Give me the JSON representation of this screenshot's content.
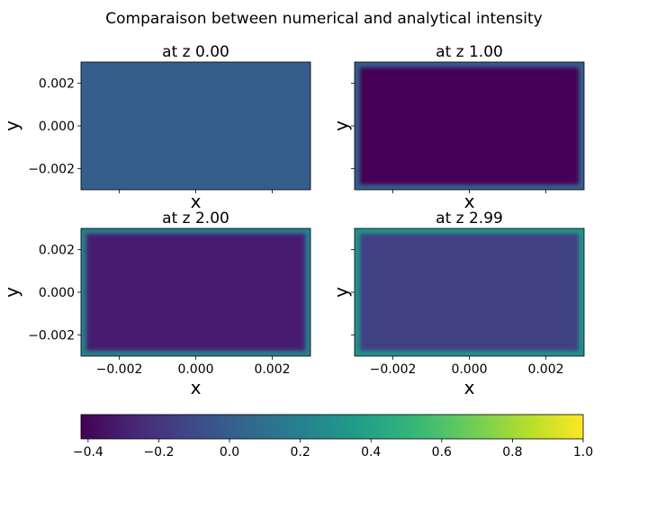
{
  "title": "Comparaison between numerical and analytical intensity",
  "chart_data": [
    {
      "type": "heatmap",
      "title": "at z 0.00",
      "xlabel": "x",
      "ylabel": "y",
      "xlim": [
        -0.003,
        0.003
      ],
      "ylim": [
        -0.003,
        0.003
      ],
      "xticks": [
        -0.002,
        0.0,
        0.002
      ],
      "xtick_labels": [
        "",
        "",
        ""
      ],
      "yticks": [
        -0.002,
        0.0,
        0.002
      ],
      "ytick_labels": [
        "−0.002",
        "0.000",
        "0.002"
      ],
      "interior_value": 0.0,
      "edge_value": 0.0
    },
    {
      "type": "heatmap",
      "title": "at z 1.00",
      "xlabel": "x",
      "ylabel": "y",
      "xlim": [
        -0.003,
        0.003
      ],
      "ylim": [
        -0.003,
        0.003
      ],
      "xticks": [
        -0.002,
        0.0,
        0.002
      ],
      "xtick_labels": [
        "",
        "",
        ""
      ],
      "yticks": [
        -0.002,
        0.0,
        0.002
      ],
      "ytick_labels": [
        "",
        "",
        ""
      ],
      "interior_value": -0.42,
      "edge_value": 0.0
    },
    {
      "type": "heatmap",
      "title": "at z 2.00",
      "xlabel": "x",
      "ylabel": "y",
      "xlim": [
        -0.003,
        0.003
      ],
      "ylim": [
        -0.003,
        0.003
      ],
      "xticks": [
        -0.002,
        0.0,
        0.002
      ],
      "xtick_labels": [
        "−0.002",
        "0.000",
        "0.002"
      ],
      "yticks": [
        -0.002,
        0.0,
        0.002
      ],
      "ytick_labels": [
        "−0.002",
        "0.000",
        "0.002"
      ],
      "interior_value": -0.3,
      "edge_value": 0.2
    },
    {
      "type": "heatmap",
      "title": "at z 2.99",
      "xlabel": "x",
      "ylabel": "y",
      "xlim": [
        -0.003,
        0.003
      ],
      "ylim": [
        -0.003,
        0.003
      ],
      "xticks": [
        -0.002,
        0.0,
        0.002
      ],
      "xtick_labels": [
        "−0.002",
        "0.000",
        "0.002"
      ],
      "yticks": [
        -0.002,
        0.0,
        0.002
      ],
      "ytick_labels": [
        "",
        "",
        ""
      ],
      "interior_value": -0.15,
      "edge_value": 0.3
    }
  ],
  "colorbar": {
    "colormap": "viridis",
    "vmin": -0.42,
    "vmax": 1.0,
    "ticks": [
      -0.4,
      -0.2,
      0.0,
      0.2,
      0.4,
      0.6,
      0.8,
      1.0
    ],
    "tick_labels": [
      "−0.4",
      "−0.2",
      "0.0",
      "0.2",
      "0.4",
      "0.6",
      "0.8",
      "1.0"
    ]
  }
}
